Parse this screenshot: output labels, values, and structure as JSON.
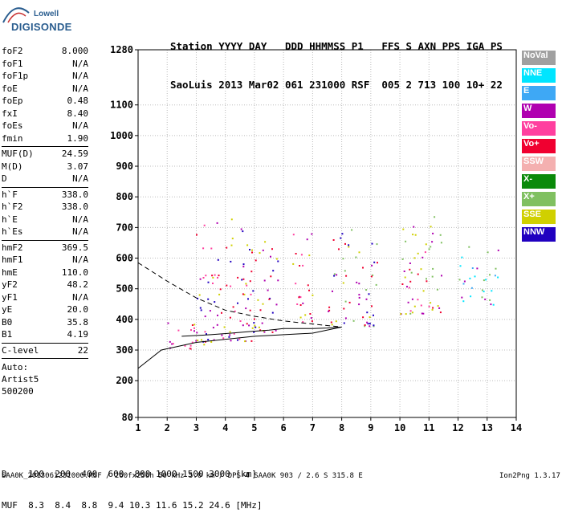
{
  "logo": {
    "line1": "Lowell",
    "line2": "DIGISONDE"
  },
  "header": {
    "line1": "Station YYYY DAY   DDD HHMMSS P1   FFS S AXN PPS IGA PS",
    "line2": "SaoLuis 2013 Mar02 061 231000 RSF  005 2 713 100 10+ 22"
  },
  "params": {
    "group1": [
      {
        "k": "foF2",
        "v": "8.000"
      },
      {
        "k": "foF1",
        "v": "N/A"
      },
      {
        "k": "foF1p",
        "v": "N/A"
      },
      {
        "k": "foE",
        "v": "N/A"
      },
      {
        "k": "foEp",
        "v": "0.48"
      },
      {
        "k": "fxI",
        "v": "8.40"
      },
      {
        "k": "foEs",
        "v": "N/A"
      },
      {
        "k": "fmin",
        "v": "1.90"
      }
    ],
    "group2": [
      {
        "k": "MUF(D)",
        "v": "24.59"
      },
      {
        "k": "M(D)",
        "v": "3.07"
      },
      {
        "k": "D",
        "v": "N/A"
      }
    ],
    "group3": [
      {
        "k": "h`F",
        "v": "338.0"
      },
      {
        "k": "h`F2",
        "v": "338.0"
      },
      {
        "k": "h`E",
        "v": "N/A"
      },
      {
        "k": "h`Es",
        "v": "N/A"
      }
    ],
    "group4": [
      {
        "k": "hmF2",
        "v": "369.5"
      },
      {
        "k": "hmF1",
        "v": "N/A"
      },
      {
        "k": "hmE",
        "v": "110.0"
      },
      {
        "k": "yF2",
        "v": "48.2"
      },
      {
        "k": "yF1",
        "v": "N/A"
      },
      {
        "k": "yE",
        "v": "20.0"
      },
      {
        "k": "B0",
        "v": "35.8"
      },
      {
        "k": "B1",
        "v": "4.19"
      }
    ],
    "group5": [
      {
        "k": "C-level",
        "v": "22"
      }
    ],
    "auto": [
      "Auto:",
      "Artist5",
      "500200"
    ]
  },
  "legend": [
    {
      "label": "NoVal",
      "color": "#a0a0a0"
    },
    {
      "label": "NNE",
      "color": "#00e5ff"
    },
    {
      "label": "E",
      "color": "#3ea8f5"
    },
    {
      "label": "W",
      "color": "#b000b0"
    },
    {
      "label": "Vo-",
      "color": "#ff3f9f"
    },
    {
      "label": "Vo+",
      "color": "#f00030"
    },
    {
      "label": "SSW",
      "color": "#f4b0b0"
    },
    {
      "label": "X-",
      "color": "#0a8a0a"
    },
    {
      "label": "X+",
      "color": "#80c060"
    },
    {
      "label": "SSE",
      "color": "#d0d000"
    },
    {
      "label": "NNW",
      "color": "#2000c0"
    }
  ],
  "chart_data": {
    "type": "scatter",
    "xlabel": "",
    "ylabel": "",
    "xlim": [
      1,
      14
    ],
    "ylim": [
      80,
      1280
    ],
    "xticks": [
      1,
      2,
      3,
      4,
      5,
      6,
      7,
      8,
      9,
      10,
      11,
      12,
      13,
      14
    ],
    "yticks": [
      80,
      200,
      300,
      400,
      500,
      600,
      700,
      800,
      900,
      1000,
      1100,
      1280
    ],
    "grid": true,
    "clusters": [
      {
        "x": [
          1.8,
          3.0
        ],
        "y": [
          300,
          410
        ],
        "colors": [
          "Vo+",
          "Vo-",
          "W"
        ]
      },
      {
        "x": [
          2.9,
          3.9
        ],
        "y": [
          320,
          720
        ],
        "colors": [
          "Vo+",
          "Vo-",
          "W",
          "SSE",
          "NNW"
        ]
      },
      {
        "x": [
          3.9,
          4.9
        ],
        "y": [
          330,
          760
        ],
        "colors": [
          "W",
          "NNW",
          "Vo+",
          "SSE",
          "Vo-"
        ]
      },
      {
        "x": [
          4.9,
          5.8
        ],
        "y": [
          360,
          700
        ],
        "colors": [
          "SSE",
          "Vo+",
          "W",
          "NNW"
        ]
      },
      {
        "x": [
          6.3,
          7.0
        ],
        "y": [
          380,
          700
        ],
        "colors": [
          "Vo+",
          "SSE",
          "Vo-",
          "W"
        ]
      },
      {
        "x": [
          7.5,
          9.2
        ],
        "y": [
          380,
          700
        ],
        "colors": [
          "SSE",
          "Vo+",
          "W",
          "NNW",
          "X+"
        ]
      },
      {
        "x": [
          10.0,
          11.5
        ],
        "y": [
          420,
          760
        ],
        "colors": [
          "SSE",
          "Vo+",
          "W",
          "Vo-",
          "X+"
        ]
      },
      {
        "x": [
          12.0,
          13.4
        ],
        "y": [
          450,
          640
        ],
        "colors": [
          "NNE",
          "E",
          "W",
          "X+"
        ]
      }
    ],
    "trace_solid": [
      [
        1,
        240
      ],
      [
        1.8,
        300
      ],
      [
        3,
        325
      ],
      [
        5,
        345
      ],
      [
        7,
        355
      ],
      [
        8,
        375
      ]
    ],
    "trace_dashed": [
      [
        1,
        585
      ],
      [
        2,
        525
      ],
      [
        3,
        470
      ],
      [
        4,
        430
      ],
      [
        5,
        410
      ],
      [
        6,
        395
      ],
      [
        7,
        385
      ],
      [
        8,
        375
      ]
    ],
    "trace_profile": [
      [
        2.5,
        345
      ],
      [
        3.5,
        350
      ],
      [
        4.2,
        355
      ],
      [
        4.8,
        360
      ],
      [
        5.5,
        365
      ],
      [
        6,
        370
      ],
      [
        7,
        370
      ],
      [
        7.5,
        372
      ],
      [
        8,
        375
      ]
    ]
  },
  "footer": {
    "line1": "D    100  200  400  600  800 1000 1500 3000 [km]",
    "line2": "MUF  8.3  8.4  8.8  9.4 10.3 11.6 15.2 24.6 [MHz]"
  },
  "source_line": "SAA0K_2013061231000.RSF / 260fx256h 50 kHz 5.0 km / DPS-4 SAA0K 903 / 2.6 S 315.8 E",
  "version": "Ion2Png 1.3.17"
}
